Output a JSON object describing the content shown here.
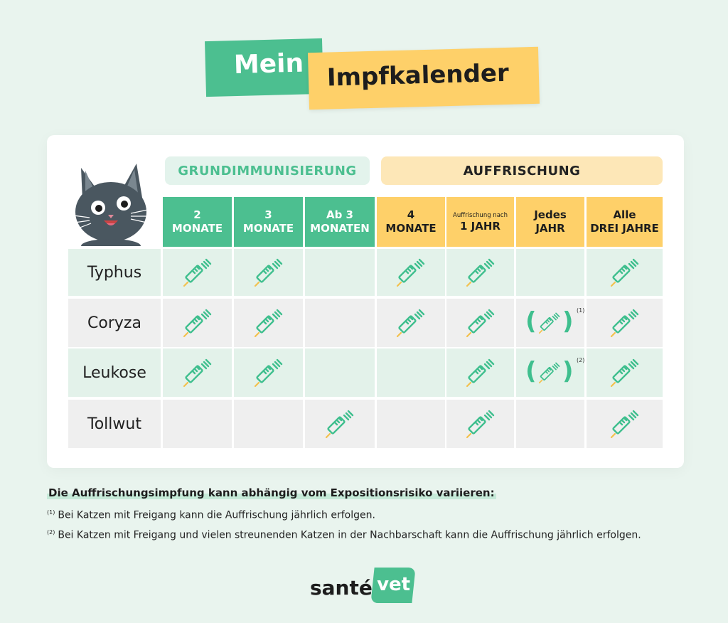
{
  "title": {
    "part1": "Mein",
    "part2": "Impfkalender"
  },
  "groups": {
    "primary": "GRUNDIMMUNISIERUNG",
    "booster": "AUFFRISCHUNG"
  },
  "columns": [
    {
      "type": "g",
      "line1": "2",
      "line2": "MONATE",
      "small": ""
    },
    {
      "type": "g",
      "line1": "3",
      "line2": "MONATE",
      "small": ""
    },
    {
      "type": "g",
      "line1": "Ab 3",
      "line2": "MONATEN",
      "small": ""
    },
    {
      "type": "a",
      "line1": "4",
      "line2": "MONATE",
      "small": ""
    },
    {
      "type": "a",
      "line1": "",
      "line2": "1 JAHR",
      "small": "Auffrischung nach"
    },
    {
      "type": "a",
      "line1": "Jedes",
      "line2": "JAHR",
      "small": ""
    },
    {
      "type": "a",
      "line1": "Alle",
      "line2": "DREI JAHRE",
      "small": ""
    }
  ],
  "rows": [
    {
      "label": "Typhus",
      "cells": [
        "yes",
        "yes",
        "",
        "yes",
        "yes",
        "",
        "yes"
      ]
    },
    {
      "label": "Coryza",
      "cells": [
        "yes",
        "yes",
        "",
        "yes",
        "yes",
        "opt1",
        "yes"
      ]
    },
    {
      "label": "Leukose",
      "cells": [
        "yes",
        "yes",
        "",
        "",
        "yes",
        "opt2",
        "yes"
      ]
    },
    {
      "label": "Tollwut",
      "cells": [
        "",
        "",
        "yes",
        "",
        "yes",
        "",
        "yes"
      ]
    }
  ],
  "footnote_refs": {
    "opt1": "(1)",
    "opt2": "(2)"
  },
  "footer": {
    "heading": "Die Auffrischungsimpfung kann abhängig vom Expositionsrisiko variieren:",
    "notes": [
      {
        "ref": "(1)",
        "text": "Bei Katzen mit Freigang kann die Auffrischung jährlich erfolgen."
      },
      {
        "ref": "(2)",
        "text": "Bei Katzen mit Freigang und vielen streunenden Katzen in der Nachbarschaft kann die Auffrischung jährlich erfolgen."
      }
    ]
  },
  "logo": {
    "part1": "santé",
    "part2": "vet"
  },
  "colors": {
    "green": "#4cbf90",
    "yellow": "#fed069",
    "row_green": "#e3f2ea",
    "row_grey": "#efefef"
  },
  "icons": {
    "vaccine": "syringe-icon"
  }
}
